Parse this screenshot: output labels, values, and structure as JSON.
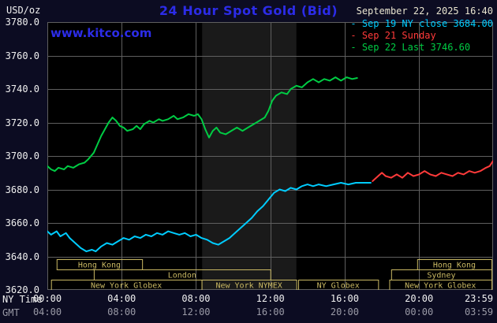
{
  "header": {
    "units": "USD/oz",
    "title": "24 Hour Spot Gold (Bid)",
    "datetime": "September 22, 2025 16:40",
    "watermark": "www.kitco.com"
  },
  "legend": [
    {
      "key": "sep19",
      "bullet": "-",
      "label": "Sep 19 NY close 3684.00",
      "color": "#00ccff"
    },
    {
      "key": "sep21",
      "bullet": "-",
      "label": "Sep 21 Sunday",
      "color": "#ff3a3a"
    },
    {
      "key": "sep22",
      "bullet": "-",
      "label": "Sep 22 Last 3746.60",
      "color": "#00cc44"
    }
  ],
  "axes": {
    "ny_label": "NY Time",
    "gmt_label": "GMT",
    "y_ticks": [
      {
        "value": 3780,
        "label": "3780.0"
      },
      {
        "value": 3760,
        "label": "3760.0"
      },
      {
        "value": 3740,
        "label": "3740.0"
      },
      {
        "value": 3720,
        "label": "3720.0"
      },
      {
        "value": 3700,
        "label": "3700.0"
      },
      {
        "value": 3680,
        "label": "3680.0"
      },
      {
        "value": 3660,
        "label": "3660.0"
      },
      {
        "value": 3640,
        "label": "3640.0"
      },
      {
        "value": 3620,
        "label": "3620.0"
      }
    ],
    "x_ticks": [
      {
        "hour": 0,
        "ny": "00:00",
        "gmt": "04:00"
      },
      {
        "hour": 4,
        "ny": "04:00",
        "gmt": "08:00"
      },
      {
        "hour": 8,
        "ny": "08:00",
        "gmt": "12:00"
      },
      {
        "hour": 12,
        "ny": "12:00",
        "gmt": "16:00"
      },
      {
        "hour": 16,
        "ny": "16:00",
        "gmt": "20:00"
      },
      {
        "hour": 20,
        "ny": "20:00",
        "gmt": "00:00"
      },
      {
        "hour": 23.983,
        "ny": "23:59",
        "gmt": "03:59"
      }
    ]
  },
  "colors": {
    "background": "#0c0c22",
    "plot_bg": "#000000",
    "grid": "#5f5f5f",
    "title_blue": "#2c2ce8",
    "session": "#c9b863",
    "axis_text": "#f0f0f0",
    "gmt_text": "#9a9aa6",
    "band": "#1a1a1a"
  },
  "chart_data": {
    "type": "line",
    "title": "24 Hour Spot Gold (Bid)",
    "ylabel": "USD/oz",
    "xlabel": "NY Time",
    "y_range": [
      3620,
      3780
    ],
    "y_tick_interval": 20,
    "x_range_hours": [
      0,
      23.983
    ],
    "grid": true,
    "legend_position": "top-right",
    "band": {
      "name": "nymex-session-shading",
      "start": 8.33,
      "end": 13.4,
      "color": "#1a1a1a"
    },
    "series": [
      {
        "key": "sep19-ny-close",
        "name": "Sep 19 NY close",
        "close": 3684.0,
        "color": "#00ccff",
        "points": [
          [
            0,
            3655
          ],
          [
            0.2,
            3653
          ],
          [
            0.5,
            3655
          ],
          [
            0.7,
            3652
          ],
          [
            1.0,
            3654
          ],
          [
            1.2,
            3651
          ],
          [
            1.5,
            3648
          ],
          [
            1.8,
            3645
          ],
          [
            2.1,
            3643
          ],
          [
            2.4,
            3644
          ],
          [
            2.6,
            3643
          ],
          [
            2.9,
            3646
          ],
          [
            3.2,
            3648
          ],
          [
            3.5,
            3647
          ],
          [
            3.8,
            3649
          ],
          [
            4.1,
            3651
          ],
          [
            4.4,
            3650
          ],
          [
            4.7,
            3652
          ],
          [
            5.0,
            3651
          ],
          [
            5.3,
            3653
          ],
          [
            5.6,
            3652
          ],
          [
            5.9,
            3654
          ],
          [
            6.2,
            3653
          ],
          [
            6.5,
            3655
          ],
          [
            6.8,
            3654
          ],
          [
            7.1,
            3653
          ],
          [
            7.4,
            3654
          ],
          [
            7.7,
            3652
          ],
          [
            8.0,
            3653
          ],
          [
            8.3,
            3651
          ],
          [
            8.6,
            3650
          ],
          [
            8.9,
            3648
          ],
          [
            9.2,
            3647
          ],
          [
            9.5,
            3649
          ],
          [
            9.8,
            3651
          ],
          [
            10.1,
            3654
          ],
          [
            10.4,
            3657
          ],
          [
            10.7,
            3660
          ],
          [
            11.0,
            3663
          ],
          [
            11.3,
            3667
          ],
          [
            11.6,
            3670
          ],
          [
            11.9,
            3674
          ],
          [
            12.2,
            3678
          ],
          [
            12.5,
            3680
          ],
          [
            12.8,
            3679
          ],
          [
            13.1,
            3681
          ],
          [
            13.4,
            3680
          ],
          [
            13.7,
            3682
          ],
          [
            14.0,
            3683
          ],
          [
            14.3,
            3682
          ],
          [
            14.6,
            3683
          ],
          [
            15.0,
            3682
          ],
          [
            15.4,
            3683
          ],
          [
            15.8,
            3684
          ],
          [
            16.2,
            3683
          ],
          [
            16.6,
            3684
          ],
          [
            17.0,
            3684
          ],
          [
            17.4,
            3684
          ]
        ]
      },
      {
        "key": "sep21-sunday",
        "name": "Sep 21 Sunday",
        "color": "#ff3a3a",
        "points": [
          [
            17.5,
            3685
          ],
          [
            17.8,
            3688
          ],
          [
            18.0,
            3690
          ],
          [
            18.2,
            3688
          ],
          [
            18.5,
            3687
          ],
          [
            18.8,
            3689
          ],
          [
            19.1,
            3687
          ],
          [
            19.4,
            3690
          ],
          [
            19.7,
            3688
          ],
          [
            20.0,
            3689
          ],
          [
            20.3,
            3691
          ],
          [
            20.6,
            3689
          ],
          [
            20.9,
            3688
          ],
          [
            21.2,
            3690
          ],
          [
            21.5,
            3689
          ],
          [
            21.8,
            3688
          ],
          [
            22.1,
            3690
          ],
          [
            22.4,
            3689
          ],
          [
            22.7,
            3691
          ],
          [
            23.0,
            3690
          ],
          [
            23.3,
            3691
          ],
          [
            23.6,
            3693
          ],
          [
            23.8,
            3694
          ],
          [
            23.98,
            3697
          ]
        ]
      },
      {
        "key": "sep22-last",
        "name": "Sep 22 Last",
        "last": 3746.6,
        "color": "#00cc44",
        "points": [
          [
            0,
            3694
          ],
          [
            0.2,
            3692
          ],
          [
            0.4,
            3691
          ],
          [
            0.6,
            3693
          ],
          [
            0.9,
            3692
          ],
          [
            1.1,
            3694
          ],
          [
            1.4,
            3693
          ],
          [
            1.7,
            3695
          ],
          [
            2.0,
            3696
          ],
          [
            2.2,
            3698
          ],
          [
            2.5,
            3702
          ],
          [
            2.7,
            3707
          ],
          [
            2.9,
            3712
          ],
          [
            3.1,
            3716
          ],
          [
            3.3,
            3720
          ],
          [
            3.5,
            3723
          ],
          [
            3.7,
            3721
          ],
          [
            3.9,
            3718
          ],
          [
            4.1,
            3717
          ],
          [
            4.3,
            3715
          ],
          [
            4.6,
            3716
          ],
          [
            4.8,
            3718
          ],
          [
            5.0,
            3716
          ],
          [
            5.2,
            3719
          ],
          [
            5.5,
            3721
          ],
          [
            5.7,
            3720
          ],
          [
            6.0,
            3722
          ],
          [
            6.2,
            3721
          ],
          [
            6.5,
            3722
          ],
          [
            6.8,
            3724
          ],
          [
            7.0,
            3722
          ],
          [
            7.3,
            3723
          ],
          [
            7.6,
            3725
          ],
          [
            7.9,
            3724
          ],
          [
            8.1,
            3725
          ],
          [
            8.3,
            3722
          ],
          [
            8.5,
            3716
          ],
          [
            8.7,
            3711
          ],
          [
            8.9,
            3715
          ],
          [
            9.1,
            3717
          ],
          [
            9.3,
            3714
          ],
          [
            9.6,
            3713
          ],
          [
            9.9,
            3715
          ],
          [
            10.2,
            3717
          ],
          [
            10.5,
            3715
          ],
          [
            10.8,
            3717
          ],
          [
            11.1,
            3719
          ],
          [
            11.4,
            3721
          ],
          [
            11.7,
            3723
          ],
          [
            11.9,
            3727
          ],
          [
            12.1,
            3733
          ],
          [
            12.3,
            3736
          ],
          [
            12.6,
            3738
          ],
          [
            12.9,
            3737
          ],
          [
            13.1,
            3740
          ],
          [
            13.4,
            3742
          ],
          [
            13.7,
            3741
          ],
          [
            14.0,
            3744
          ],
          [
            14.3,
            3746
          ],
          [
            14.6,
            3744
          ],
          [
            14.9,
            3746
          ],
          [
            15.2,
            3745
          ],
          [
            15.5,
            3747
          ],
          [
            15.8,
            3745
          ],
          [
            16.1,
            3747
          ],
          [
            16.4,
            3746
          ],
          [
            16.67,
            3746.6
          ]
        ]
      }
    ],
    "sessions": [
      {
        "row": 1,
        "label": "Hong Kong",
        "start": 0.5,
        "end": 5.1
      },
      {
        "row": 1,
        "label": "Hong Kong",
        "start": 19.9,
        "end": 23.9
      },
      {
        "row": 2,
        "label": "London",
        "start": 2.5,
        "end": 12.0
      },
      {
        "row": 2,
        "label": "Sydney",
        "start": 18.5,
        "end": 23.9
      },
      {
        "row": 3,
        "label": "New York Globex",
        "start": 0.2,
        "end": 8.3
      },
      {
        "row": 3,
        "label": "New York NYMEX",
        "start": 8.3,
        "end": 13.4
      },
      {
        "row": 3,
        "label": "NY Globex",
        "start": 13.5,
        "end": 17.8
      },
      {
        "row": 3,
        "label": "New York Globex",
        "start": 18.4,
        "end": 23.9
      }
    ]
  }
}
